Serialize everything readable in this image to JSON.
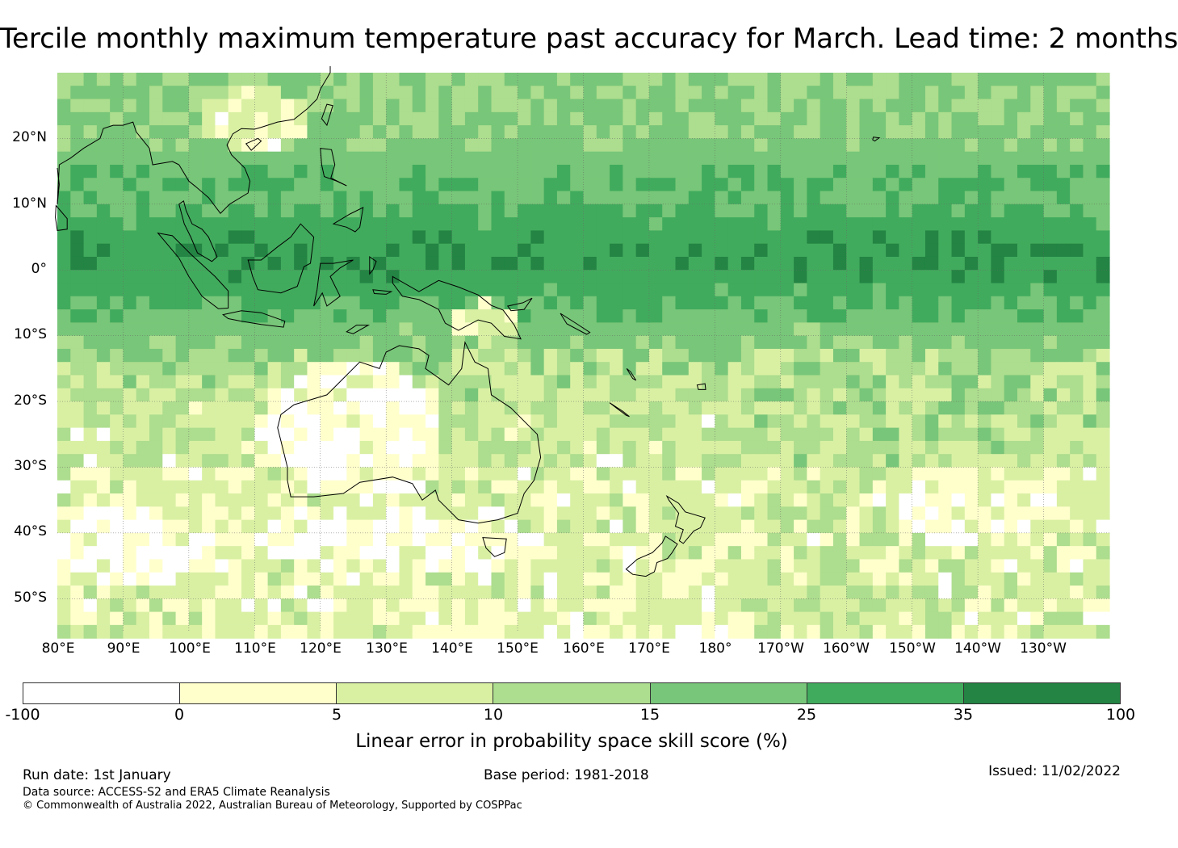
{
  "title": "Tercile monthly maximum temperature past accuracy for March. Lead time: 2 months",
  "map": {
    "lat_range": [
      -55,
      30
    ],
    "lon_range_east": [
      80,
      240
    ],
    "lat_labels": [
      "20°N",
      "10°N",
      "0°",
      "10°S",
      "20°S",
      "30°S",
      "40°S",
      "50°S"
    ],
    "lon_labels": [
      "80°E",
      "90°E",
      "100°E",
      "110°E",
      "120°E",
      "130°E",
      "140°E",
      "150°E",
      "160°E",
      "170°E",
      "180°",
      "170°W",
      "160°W",
      "150°W",
      "140°W",
      "130°W"
    ],
    "colors": {
      "c_neg": "#ffffff",
      "c0": "#ffffcc",
      "c5": "#d9f0a3",
      "c10": "#addd8e",
      "c15": "#78c679",
      "c25": "#41ab5d",
      "c35": "#238443",
      "land_outline": "#000000"
    }
  },
  "colorbar": {
    "ticks": [
      "-100",
      "0",
      "5",
      "10",
      "15",
      "25",
      "35",
      "100"
    ],
    "colors": [
      "#ffffff",
      "#ffffcc",
      "#d9f0a3",
      "#addd8e",
      "#78c679",
      "#41ab5d",
      "#238443"
    ],
    "label": "Linear error in probability space skill score (%)"
  },
  "footer": {
    "run_date": "Run date: 1st January",
    "base_period": "Base period: 1981-2018",
    "issued": "Issued: 11/02/2022",
    "data_source": "Data source: ACCESS-S2 and ERA5 Climate Reanalysis",
    "copyright": "© Commonwealth of Australia 2022, Australian Bureau of Meteorology, Supported by COSPPac"
  }
}
